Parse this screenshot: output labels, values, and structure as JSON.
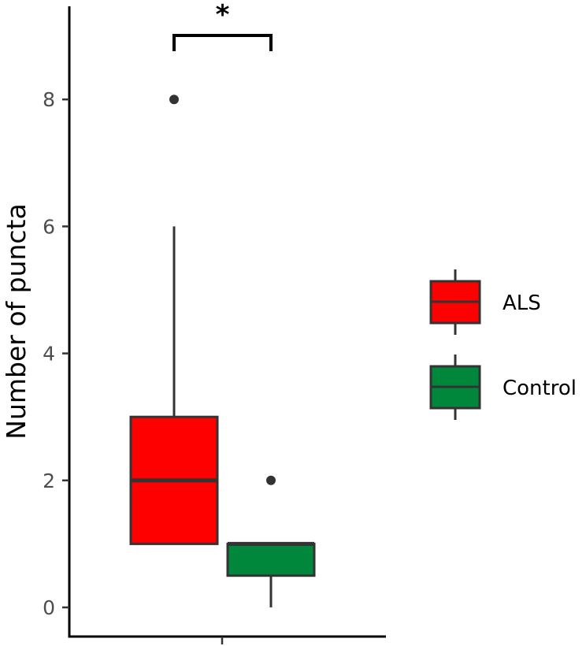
{
  "chart_data": {
    "type": "box",
    "title": "",
    "xlabel": "",
    "ylabel": "Number of puncta",
    "ylim": [
      -0.45,
      9.5
    ],
    "yticks": [
      0,
      2,
      4,
      6,
      8
    ],
    "grid": false,
    "legend_position": "right",
    "series": [
      {
        "name": "ALS",
        "color": "#ff0000",
        "whisker_low": 1,
        "q1": 1,
        "median": 2,
        "q3": 3,
        "whisker_high": 6,
        "outliers": [
          8
        ]
      },
      {
        "name": "Control",
        "color": "#00873c",
        "whisker_low": 0,
        "q1": 0.5,
        "median": 1,
        "q3": 1,
        "whisker_high": 1,
        "outliers": [
          2
        ]
      }
    ],
    "annotations": [
      {
        "type": "significance-bracket",
        "between": [
          "ALS",
          "Control"
        ],
        "y": 9.0,
        "label": "*"
      }
    ]
  }
}
